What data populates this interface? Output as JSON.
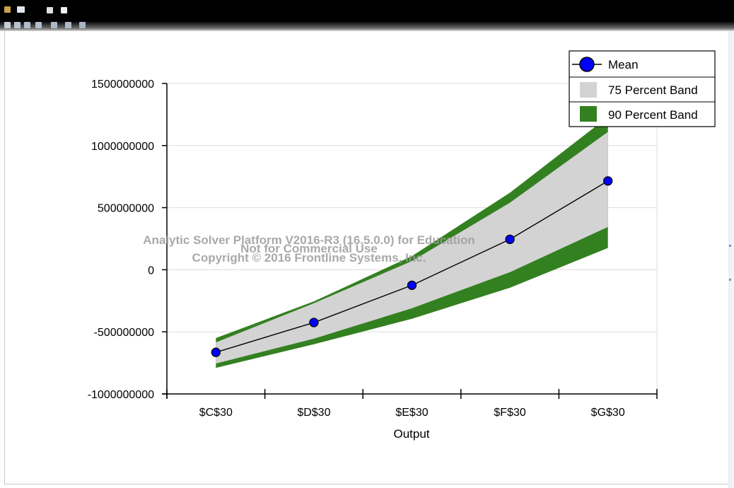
{
  "toolbar": {
    "icons": [
      "app-icon",
      "save-icon",
      "chart-icon",
      "copy-icon",
      "print-icon",
      "zoom-icon",
      "back-icon",
      "forward-icon",
      "up-icon",
      "down-icon",
      "settings-icon"
    ]
  },
  "chart_data": {
    "type": "line",
    "xlabel": "Output",
    "ylabel": "",
    "categories": [
      "$C$30",
      "$D$30",
      "$E$30",
      "$F$30",
      "$G$30"
    ],
    "ylim": [
      -1000000000,
      1500000000
    ],
    "yticks": [
      "1500000000",
      "1000000000",
      "500000000",
      "0",
      "-500000000",
      "-1000000000"
    ],
    "ytick_values": [
      1500000000,
      1000000000,
      500000000,
      0,
      -500000000,
      -1000000000
    ],
    "grid": true,
    "legend_position": "top-right",
    "series": [
      {
        "name": "Mean",
        "values": [
          -665000000,
          -425000000,
          -125000000,
          245000000,
          715000000
        ],
        "color": "#0000ff"
      },
      {
        "name": "75 Percent Band",
        "lower": [
          -755000000,
          -555000000,
          -310000000,
          -20000000,
          345000000
        ],
        "upper": [
          -585000000,
          -270000000,
          70000000,
          540000000,
          1110000000
        ],
        "color": "#d3d3d3"
      },
      {
        "name": "90 Percent Band",
        "lower": [
          -790000000,
          -600000000,
          -395000000,
          -145000000,
          175000000
        ],
        "upper": [
          -550000000,
          -255000000,
          110000000,
          620000000,
          1230000000
        ],
        "color": "#338020"
      }
    ],
    "watermark": {
      "line1": "Analytic Solver Platform V2016-R3 (16.5.0.0) for Education",
      "line2": "Not for Commercial Use",
      "line3": "Copyright © 2016 Frontline Systems, Inc."
    }
  }
}
